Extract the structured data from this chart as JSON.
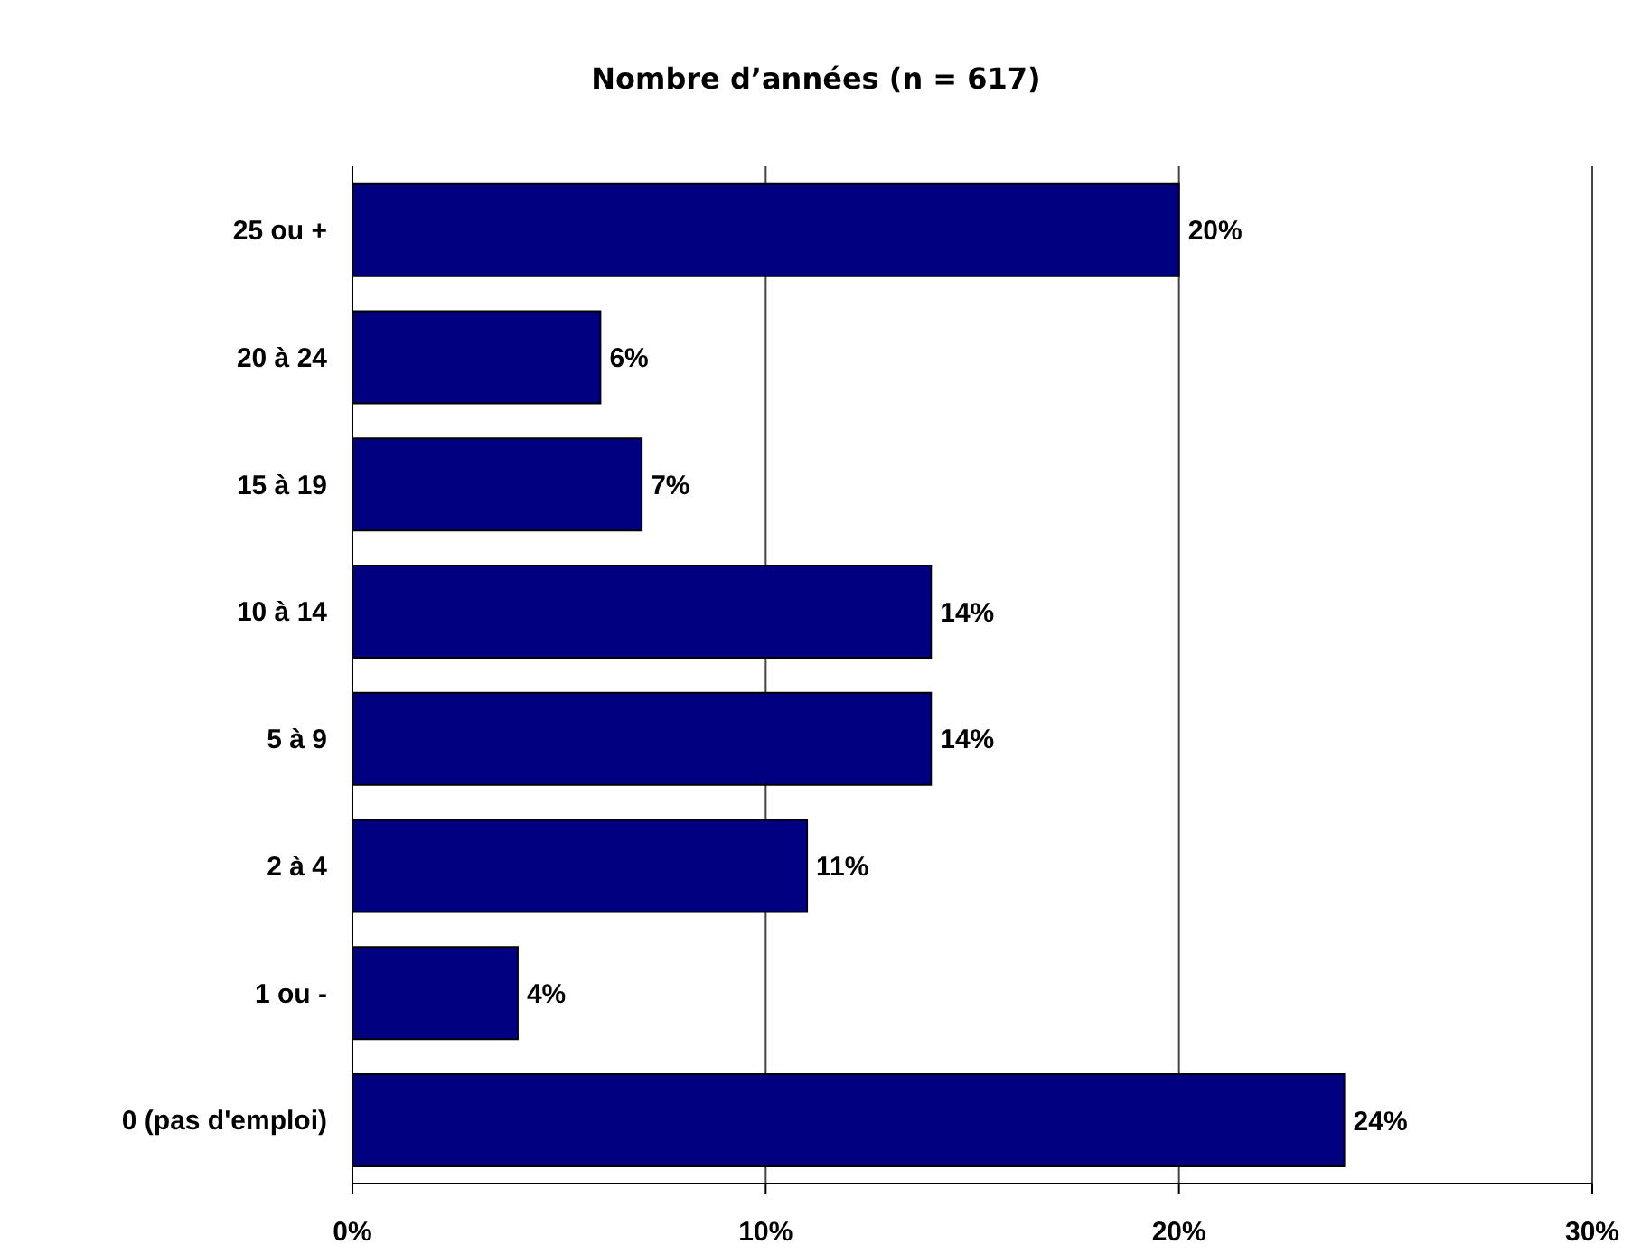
{
  "chart_data": {
    "type": "bar",
    "orientation": "horizontal",
    "title": "Nombre d’années (n = 617)",
    "categories": [
      "25 ou +",
      "20 à 24",
      "15 à 19",
      "10 à 14",
      "5 à 9",
      "2 à 4",
      "1 ou -",
      "0 (pas d'emploi)"
    ],
    "values": [
      20,
      6,
      7,
      14,
      14,
      11,
      4,
      24
    ],
    "value_labels": [
      "20%",
      "6%",
      "7%",
      "14%",
      "14%",
      "11%",
      "4%",
      "24%"
    ],
    "color": "#000080",
    "xlim": [
      0,
      30
    ],
    "xticks": [
      {
        "value": 0,
        "label": "0%"
      },
      {
        "value": 10,
        "label": "10%"
      },
      {
        "value": 20,
        "label": "20%"
      },
      {
        "value": 30,
        "label": "30%"
      }
    ],
    "grid": "x"
  }
}
